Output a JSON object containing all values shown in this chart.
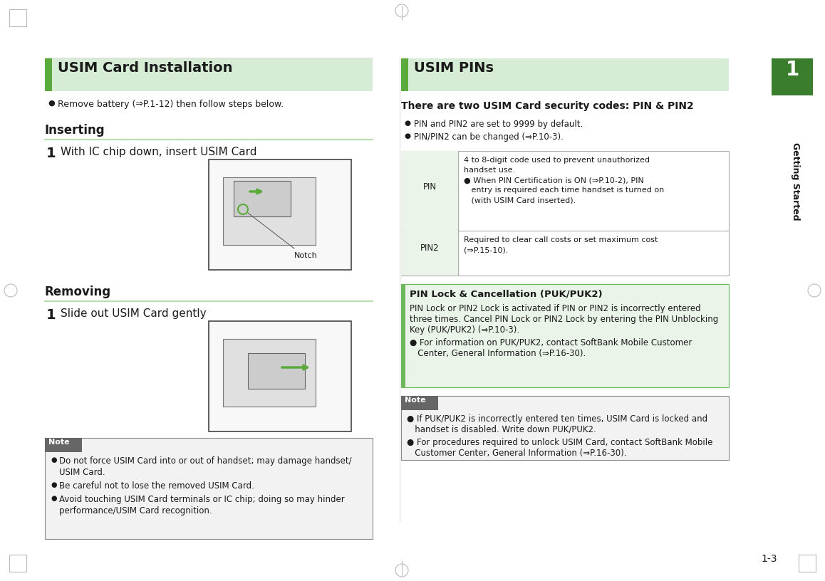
{
  "page_bg": "#ffffff",
  "header_bg": "#d6ecd4",
  "green_accent": "#5aaa3c",
  "section_line_color": "#b8ddb0",
  "note_bg": "#f2f2f2",
  "note_border": "#888888",
  "pin_lock_bg": "#eaf4e8",
  "pin_lock_border": "#6ab85a",
  "table_border": "#aaaaaa",
  "table_left_bg": "#eaf4e8",
  "text_color": "#1a1a1a",
  "sidebar_green": "#3a7d2c",
  "page_number": "1-3",
  "chapter_number": "1",
  "chapter_title": "Getting Started",
  "left_section_title": "USIM Card Installation",
  "right_section_title": "USIM PINs",
  "remove_battery_text": "Remove battery (⇒P.1-12) then follow steps below.",
  "inserting_title": "Inserting",
  "inserting_step": "With IC chip down, insert USIM Card",
  "notch_label": "Notch",
  "removing_title": "Removing",
  "removing_step": "Slide out USIM Card gently",
  "note_title": "Note",
  "note_items": [
    "Do not force USIM Card into or out of handset; may damage handset/\nUSIM Card.",
    "Be careful not to lose the removed USIM Card.",
    "Avoid touching USIM Card terminals or IC chip; doing so may hinder\nperformance/USIM Card recognition."
  ],
  "pins_subtitle": "There are two USIM Card security codes: PIN & PIN2",
  "pins_bullets": [
    "PIN and PIN2 are set to 9999 by default.",
    "PIN/PIN2 can be changed (⇒P.10-3)."
  ],
  "table_pin_label": "PIN",
  "table_pin_desc_line1": "4 to 8-digit code used to prevent unauthorized",
  "table_pin_desc_line2": "handset use.",
  "table_pin_desc_bullet": "● When PIN Certification is ON (⇒P.10-2), PIN",
  "table_pin_desc_bullet2": "   entry is required each time handset is turned on",
  "table_pin_desc_bullet3": "   (with USIM Card inserted).",
  "table_pin2_label": "PIN2",
  "table_pin2_desc_line1": "Required to clear call costs or set maximum cost",
  "table_pin2_desc_line2": "(⇒P.15-10).",
  "pin_lock_title": "PIN Lock & Cancellation (PUK/PUK2)",
  "pin_lock_body_lines": [
    "PIN Lock or PIN2 Lock is activated if PIN or PIN2 is incorrectly entered",
    "three times. Cancel PIN Lock or PIN2 Lock by entering the PIN Unblocking",
    "Key (PUK/PUK2) (⇒P.10-3)."
  ],
  "pin_lock_bullet_lines": [
    "● For information on PUK/PUK2, contact SoftBank Mobile Customer",
    "   Center, General Information (⇒P.16-30)."
  ],
  "right_note_title": "Note",
  "right_note_items": [
    [
      "● If PUK/PUK2 is incorrectly entered ten times, USIM Card is locked and",
      "   handset is disabled. Write down PUK/PUK2."
    ],
    [
      "● For procedures required to unlock USIM Card, contact SoftBank Mobile",
      "   Customer Center, General Information (⇒P.16-30)."
    ]
  ]
}
